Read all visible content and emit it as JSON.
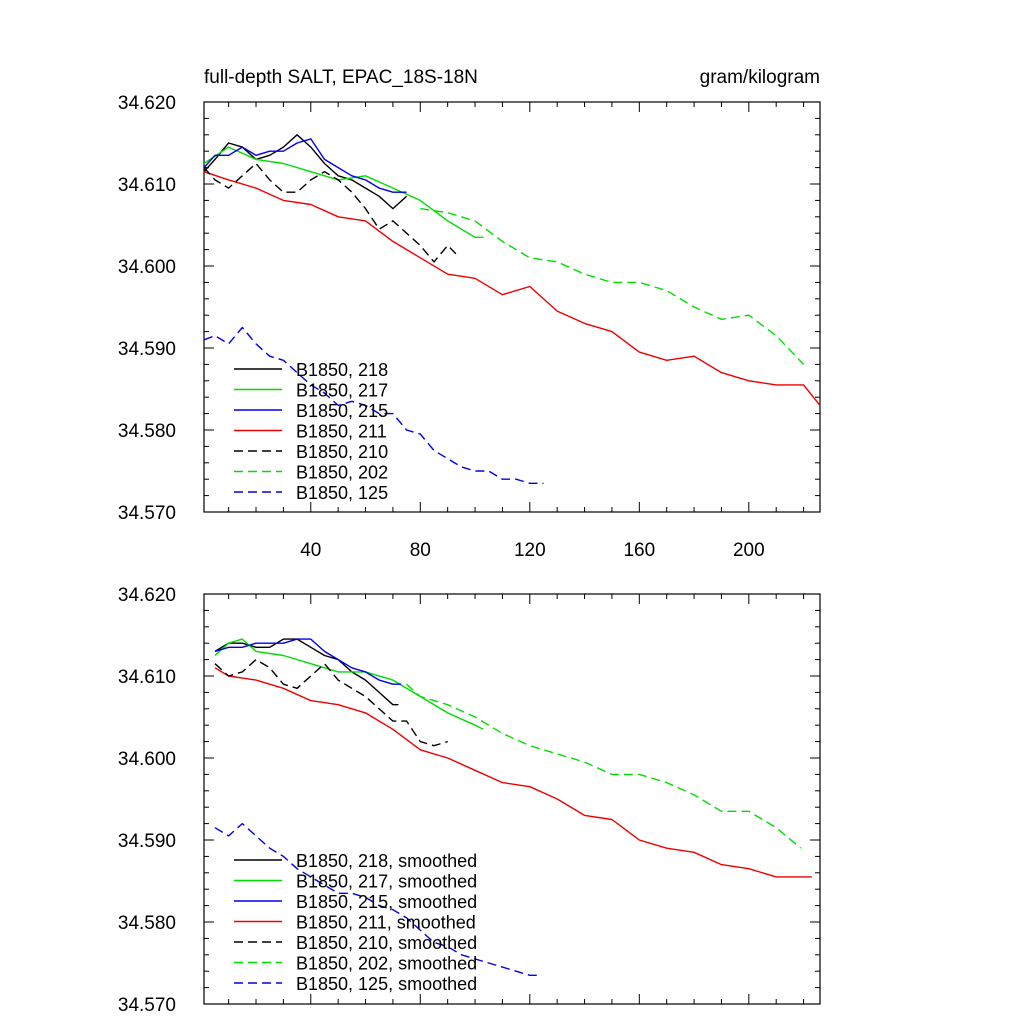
{
  "chart_data": [
    {
      "type": "line",
      "title": "full-depth SALT, EPAC_18S-18N",
      "units": "gram/kilogram",
      "xlim": [
        1,
        226
      ],
      "ylim": [
        34.57,
        34.62
      ],
      "x_ticks": [
        40,
        80,
        120,
        160,
        200
      ],
      "x_tick_labels": [
        "40",
        "80",
        "120",
        "160",
        "200"
      ],
      "y_ticks": [
        34.57,
        34.58,
        34.59,
        34.6,
        34.61,
        34.62
      ],
      "y_tick_labels": [
        "34.570",
        "34.580",
        "34.590",
        "34.600",
        "34.610",
        "34.620"
      ],
      "legend_placement": "lower-left",
      "series": [
        {
          "name": "B1850, 218",
          "color": "#000000",
          "dash": "solid",
          "x": [
            1,
            5,
            10,
            15,
            20,
            25,
            30,
            35,
            40,
            45,
            50,
            55,
            60,
            65,
            70,
            75
          ],
          "y": [
            34.6115,
            34.613,
            34.615,
            34.6145,
            34.613,
            34.6135,
            34.6145,
            34.616,
            34.6145,
            34.6125,
            34.611,
            34.6105,
            34.6095,
            34.6085,
            34.607,
            34.6085
          ]
        },
        {
          "name": "B1850, 217",
          "color": "#00dd00",
          "dash": "solid",
          "x": [
            1,
            10,
            20,
            30,
            40,
            50,
            60,
            70,
            80,
            90,
            100,
            103
          ],
          "y": [
            34.6125,
            34.6145,
            34.613,
            34.6125,
            34.6115,
            34.6105,
            34.611,
            34.6095,
            34.608,
            34.6055,
            34.6035,
            34.6035
          ]
        },
        {
          "name": "B1850, 215",
          "color": "#0000ee",
          "dash": "solid",
          "x": [
            1,
            5,
            10,
            15,
            20,
            25,
            30,
            35,
            40,
            45,
            50,
            55,
            60,
            65,
            70,
            75
          ],
          "y": [
            34.612,
            34.6135,
            34.6135,
            34.6145,
            34.6135,
            34.614,
            34.614,
            34.615,
            34.6155,
            34.613,
            34.612,
            34.611,
            34.6105,
            34.6095,
            34.609,
            34.609
          ]
        },
        {
          "name": "B1850, 211",
          "color": "#ee0000",
          "dash": "solid",
          "x": [
            1,
            10,
            20,
            30,
            40,
            50,
            60,
            70,
            80,
            90,
            100,
            110,
            120,
            130,
            140,
            150,
            160,
            170,
            180,
            190,
            200,
            210,
            220,
            226
          ],
          "y": [
            34.6115,
            34.6105,
            34.6095,
            34.608,
            34.6075,
            34.606,
            34.6055,
            34.603,
            34.601,
            34.599,
            34.5985,
            34.5965,
            34.5975,
            34.5945,
            34.593,
            34.592,
            34.5895,
            34.5885,
            34.589,
            34.587,
            34.586,
            34.5855,
            34.5855,
            34.583
          ]
        },
        {
          "name": "B1850, 210",
          "color": "#000000",
          "dash": "dash",
          "x": [
            1,
            5,
            10,
            15,
            20,
            25,
            30,
            35,
            40,
            45,
            50,
            55,
            60,
            65,
            70,
            75,
            80,
            85,
            90,
            93
          ],
          "y": [
            34.612,
            34.6105,
            34.6095,
            34.611,
            34.6125,
            34.6105,
            34.609,
            34.609,
            34.6105,
            34.6115,
            34.6105,
            34.609,
            34.607,
            34.6045,
            34.6055,
            34.604,
            34.6025,
            34.6005,
            34.6025,
            34.6015
          ]
        },
        {
          "name": "B1850, 202",
          "color": "#00dd00",
          "dash": "dash",
          "x": [
            80,
            90,
            100,
            110,
            120,
            130,
            140,
            150,
            160,
            170,
            180,
            190,
            200,
            210,
            220
          ],
          "y": [
            34.607,
            34.6065,
            34.6055,
            34.603,
            34.601,
            34.6005,
            34.599,
            34.598,
            34.598,
            34.597,
            34.595,
            34.5935,
            34.594,
            34.5915,
            34.588
          ]
        },
        {
          "name": "B1850, 125",
          "color": "#0000ee",
          "dash": "dash",
          "x": [
            1,
            5,
            10,
            15,
            20,
            25,
            30,
            35,
            40,
            45,
            50,
            55,
            60,
            65,
            70,
            75,
            80,
            85,
            90,
            95,
            100,
            105,
            110,
            115,
            120,
            125
          ],
          "y": [
            34.591,
            34.5915,
            34.5905,
            34.5925,
            34.5905,
            34.589,
            34.5885,
            34.587,
            34.5855,
            34.5845,
            34.583,
            34.5835,
            34.583,
            34.582,
            34.582,
            34.58,
            34.5795,
            34.5775,
            34.5765,
            34.5755,
            34.575,
            34.575,
            34.574,
            34.574,
            34.5735,
            34.5735
          ]
        }
      ]
    },
    {
      "type": "line",
      "title": "",
      "xlim": [
        1,
        226
      ],
      "ylim": [
        34.57,
        34.62
      ],
      "x_ticks": [
        40,
        80,
        120,
        160,
        200
      ],
      "y_ticks": [
        34.57,
        34.58,
        34.59,
        34.6,
        34.61,
        34.62
      ],
      "y_tick_labels": [
        "34.570",
        "34.580",
        "34.590",
        "34.600",
        "34.610",
        "34.620"
      ],
      "legend_placement": "lower-left",
      "series": [
        {
          "name": "B1850, 218, smoothed",
          "color": "#000000",
          "dash": "solid",
          "x": [
            5,
            10,
            15,
            20,
            25,
            30,
            35,
            40,
            45,
            50,
            55,
            60,
            65,
            70,
            72
          ],
          "y": [
            34.613,
            34.614,
            34.614,
            34.6135,
            34.6135,
            34.6145,
            34.6145,
            34.6135,
            34.6125,
            34.612,
            34.6105,
            34.6095,
            34.608,
            34.6065,
            34.6065
          ]
        },
        {
          "name": "B1850, 217, smoothed",
          "color": "#00dd00",
          "dash": "solid",
          "x": [
            5,
            10,
            15,
            20,
            30,
            40,
            50,
            60,
            70,
            80,
            90,
            100,
            103
          ],
          "y": [
            34.6125,
            34.614,
            34.6145,
            34.613,
            34.6125,
            34.6115,
            34.6105,
            34.6105,
            34.6095,
            34.6075,
            34.6055,
            34.604,
            34.6035
          ]
        },
        {
          "name": "B1850, 215, smoothed",
          "color": "#0000ee",
          "dash": "solid",
          "x": [
            5,
            10,
            15,
            20,
            25,
            30,
            35,
            40,
            45,
            50,
            55,
            60,
            65,
            70,
            73
          ],
          "y": [
            34.613,
            34.6135,
            34.6135,
            34.614,
            34.614,
            34.614,
            34.6145,
            34.6145,
            34.613,
            34.612,
            34.611,
            34.6105,
            34.6095,
            34.609,
            34.609
          ]
        },
        {
          "name": "B1850, 211, smoothed",
          "color": "#ee0000",
          "dash": "solid",
          "x": [
            5,
            10,
            20,
            30,
            40,
            50,
            60,
            70,
            80,
            90,
            100,
            110,
            120,
            130,
            140,
            150,
            160,
            170,
            180,
            190,
            200,
            210,
            220,
            223
          ],
          "y": [
            34.611,
            34.61,
            34.6095,
            34.6085,
            34.607,
            34.6065,
            34.6055,
            34.6035,
            34.601,
            34.6,
            34.5985,
            34.597,
            34.5965,
            34.595,
            34.593,
            34.5925,
            34.59,
            34.589,
            34.5885,
            34.587,
            34.5865,
            34.5855,
            34.5855,
            34.5855
          ]
        },
        {
          "name": "B1850, 210, smoothed",
          "color": "#000000",
          "dash": "dash",
          "x": [
            5,
            10,
            15,
            20,
            25,
            30,
            35,
            40,
            45,
            50,
            55,
            60,
            65,
            70,
            75,
            80,
            85,
            90
          ],
          "y": [
            34.6115,
            34.61,
            34.6105,
            34.612,
            34.611,
            34.609,
            34.6085,
            34.61,
            34.6115,
            34.6095,
            34.6085,
            34.6075,
            34.606,
            34.6045,
            34.6045,
            34.602,
            34.6015,
            34.602
          ]
        },
        {
          "name": "B1850, 202, smoothed",
          "color": "#00dd00",
          "dash": "dash",
          "x": [
            75,
            80,
            90,
            100,
            110,
            120,
            130,
            140,
            150,
            160,
            170,
            180,
            190,
            200,
            210,
            219
          ],
          "y": [
            34.609,
            34.6075,
            34.6065,
            34.605,
            34.603,
            34.6015,
            34.6005,
            34.5995,
            34.598,
            34.598,
            34.597,
            34.5955,
            34.5935,
            34.5935,
            34.5915,
            34.589
          ]
        },
        {
          "name": "B1850, 125, smoothed",
          "color": "#0000ee",
          "dash": "dash",
          "x": [
            5,
            10,
            15,
            20,
            25,
            30,
            35,
            40,
            45,
            50,
            55,
            60,
            65,
            70,
            75,
            80,
            85,
            90,
            95,
            100,
            105,
            110,
            115,
            120,
            124
          ],
          "y": [
            34.5915,
            34.5905,
            34.592,
            34.5905,
            34.589,
            34.588,
            34.5865,
            34.5855,
            34.5845,
            34.5835,
            34.5835,
            34.583,
            34.582,
            34.5815,
            34.5805,
            34.579,
            34.5775,
            34.577,
            34.576,
            34.5755,
            34.575,
            34.5745,
            34.574,
            34.5735,
            34.5735
          ]
        }
      ]
    }
  ]
}
